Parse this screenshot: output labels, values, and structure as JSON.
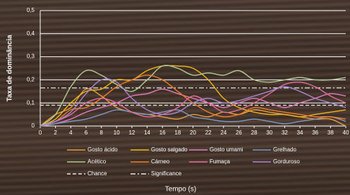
{
  "chart_data": {
    "type": "line",
    "x_label": "Tempo (s)",
    "y_label": "Taxa de dominância",
    "x": [
      0,
      2,
      4,
      6,
      8,
      10,
      12,
      14,
      16,
      18,
      20,
      22,
      24,
      26,
      28,
      30,
      32,
      34,
      36,
      38,
      40
    ],
    "xlim": [
      0,
      40
    ],
    "xticks": [
      0,
      2,
      4,
      6,
      8,
      10,
      12,
      14,
      16,
      18,
      20,
      22,
      24,
      26,
      28,
      30,
      32,
      34,
      36,
      38,
      40
    ],
    "ylim": [
      0,
      0.5
    ],
    "yticks": [
      0,
      {
        "value": 0.1,
        "label": "0,1"
      },
      {
        "value": 0.2,
        "label": "0,2"
      },
      {
        "value": 0.3,
        "label": "0,3"
      },
      {
        "value": 0.4,
        "label": "0,4"
      },
      {
        "value": 0.5,
        "label": "0,5"
      }
    ],
    "grid": true,
    "series": [
      {
        "name": "Gosto ácido",
        "color": "#e8a040",
        "values": [
          0,
          0.05,
          0.08,
          0.16,
          0.13,
          0.08,
          0.06,
          0.05,
          0.04,
          0.03,
          0.05,
          0.04,
          0.06,
          0.05,
          0.07,
          0.06,
          0.05,
          0.04,
          0.03,
          0.03,
          0
        ]
      },
      {
        "name": "Gosto salgado",
        "color": "#f2b418",
        "values": [
          0,
          0.03,
          0.1,
          0.15,
          0.16,
          0.2,
          0.2,
          0.24,
          0.26,
          0.26,
          0.25,
          0.2,
          0.12,
          0.08,
          0.06,
          0.05,
          0.05,
          0.04,
          0.05,
          0.06,
          0.07
        ]
      },
      {
        "name": "Gosto umami",
        "color": "#e07cc0",
        "values": [
          0,
          0.01,
          0.03,
          0.06,
          0.08,
          0.1,
          0.13,
          0.14,
          0.16,
          0.14,
          0.12,
          0.1,
          0.08,
          0.1,
          0.12,
          0.1,
          0.08,
          0.1,
          0.12,
          0.14,
          0.13
        ]
      },
      {
        "name": "Grelhado",
        "color": "#7a98c8",
        "values": [
          0,
          0.01,
          0.02,
          0.03,
          0.05,
          0.07,
          0.06,
          0.05,
          0.06,
          0.07,
          0.04,
          0.03,
          0.02,
          0.02,
          0.03,
          0.02,
          0.01,
          0.02,
          0.03,
          0.04,
          0.02
        ]
      },
      {
        "name": "Acético",
        "color": "#b4cc94",
        "values": [
          0,
          0.05,
          0.17,
          0.24,
          0.22,
          0.18,
          0.15,
          0.2,
          0.26,
          0.25,
          0.22,
          0.23,
          0.22,
          0.24,
          0.2,
          0.19,
          0.2,
          0.21,
          0.2,
          0.2,
          0.21
        ]
      },
      {
        "name": "Cárneo",
        "color": "#f07c28",
        "values": [
          0,
          0.02,
          0.07,
          0.08,
          0.12,
          0.17,
          0.2,
          0.22,
          0.2,
          0.15,
          0.1,
          0.06,
          0.04,
          0.05,
          0.08,
          0.07,
          0.06,
          0.05,
          0.04,
          0.04,
          0.03
        ]
      },
      {
        "name": "Fumaça",
        "color": "#e46c9c",
        "values": [
          0,
          0.02,
          0.05,
          0.1,
          0.12,
          0.1,
          0.06,
          0.04,
          0.05,
          0.08,
          0.13,
          0.1,
          0.06,
          0.07,
          0.1,
          0.14,
          0.18,
          0.19,
          0.17,
          0.13,
          0.1
        ]
      },
      {
        "name": "Gorduroso",
        "color": "#a888d8",
        "values": [
          0,
          0.02,
          0.06,
          0.14,
          0.2,
          0.19,
          0.12,
          0.07,
          0.05,
          0.06,
          0.1,
          0.12,
          0.1,
          0.11,
          0.13,
          0.15,
          0.17,
          0.15,
          0.12,
          0.1,
          0.08
        ]
      }
    ],
    "reference_lines": [
      {
        "name": "Chance",
        "value": 0.09,
        "color": "#e8e8e8",
        "style": "dashed"
      },
      {
        "name": "Significance",
        "value": 0.165,
        "color": "#e8e8e8",
        "style": "dashdot"
      }
    ]
  }
}
